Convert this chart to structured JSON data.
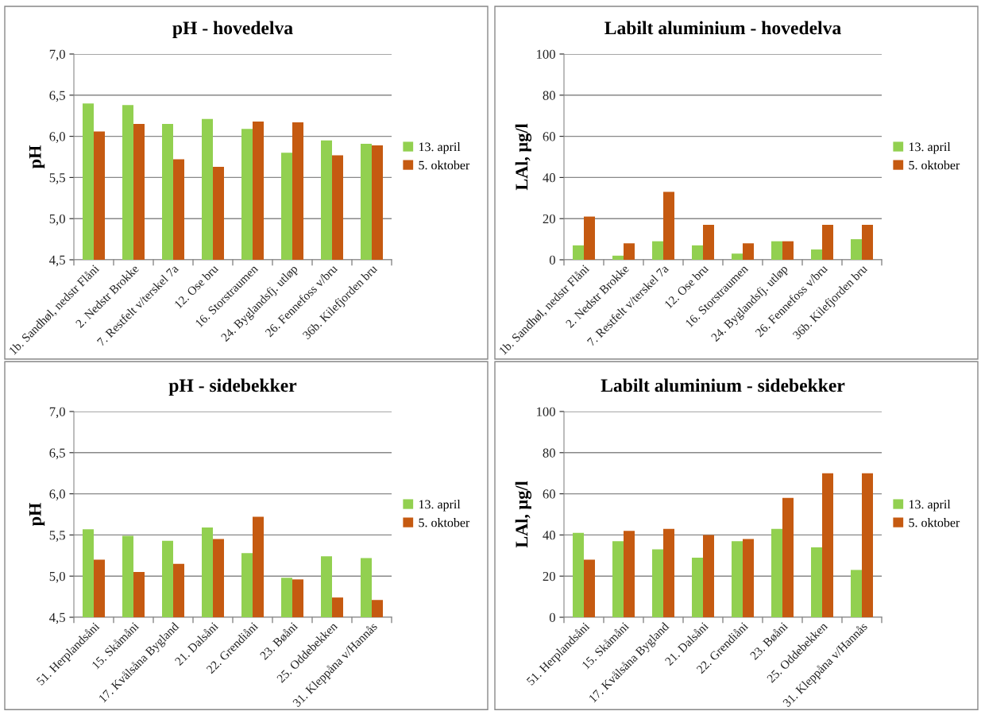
{
  "chart_data": [
    {
      "type": "bar",
      "title": "pH - hovedelva",
      "ylabel": "pH",
      "categories": [
        "1b. Sandhøl, nedstr Flåni",
        "2. Nedstr Brokke",
        "7. Restfelt v/terskel 7a",
        "12. Ose bru",
        "16. Storstraumen",
        "24. Byglandsfj. utløp",
        "26. Fennefoss v/bru",
        "36b. Kilefjorden bru"
      ],
      "series": [
        {
          "name": "13. april",
          "color": "#92d050",
          "values": [
            6.4,
            6.38,
            6.15,
            6.21,
            6.09,
            5.8,
            5.95,
            5.91
          ]
        },
        {
          "name": "5. oktober",
          "color": "#c55a11",
          "values": [
            6.06,
            6.15,
            5.72,
            5.63,
            6.18,
            6.17,
            5.77,
            5.89
          ]
        }
      ],
      "ylim": [
        4.5,
        7.0
      ],
      "yticks": [
        {
          "value": 4.5,
          "label": "4,5"
        },
        {
          "value": 5.0,
          "label": "5,0"
        },
        {
          "value": 5.5,
          "label": "5,5"
        },
        {
          "value": 6.0,
          "label": "6,0"
        },
        {
          "value": 6.5,
          "label": "6,5"
        },
        {
          "value": 7.0,
          "label": "7,0"
        }
      ],
      "grid": "y",
      "legend": "right"
    },
    {
      "type": "bar",
      "title": "Labilt aluminium - hovedelva",
      "ylabel": "LAl, µg/l",
      "categories": [
        "1b. Sandhøl, nedstr Flåni",
        "2. Nedstr Brokke",
        "7. Restfelt v/terskel 7a",
        "12. Ose bru",
        "16. Storstraumen",
        "24. Byglandsfj. utløp",
        "26. Fennefoss v/bru",
        "36b. Kilefjorden bru"
      ],
      "series": [
        {
          "name": "13. april",
          "color": "#92d050",
          "values": [
            7,
            2,
            9,
            7,
            3,
            9,
            5,
            10
          ]
        },
        {
          "name": "5. oktober",
          "color": "#c55a11",
          "values": [
            21,
            8,
            33,
            17,
            8,
            9,
            17,
            17
          ]
        }
      ],
      "ylim": [
        0,
        100
      ],
      "yticks": [
        0,
        20,
        40,
        60,
        80,
        100
      ],
      "grid": "y",
      "legend": "right"
    },
    {
      "type": "bar",
      "title": "pH - sidebekker",
      "ylabel": "pH",
      "categories": [
        "51. Herplandsåni",
        "15. Skåmåni",
        "17. Kvålsåna Bygland",
        "21. Dalsåni",
        "22. Grendiåni",
        "23. Bøåni",
        "25. Oddebekken",
        "31. Kleppåna v/Hannås"
      ],
      "series": [
        {
          "name": "13. april",
          "color": "#92d050",
          "values": [
            5.57,
            5.49,
            5.43,
            5.59,
            5.28,
            4.98,
            5.24,
            5.22
          ]
        },
        {
          "name": "5. oktober",
          "color": "#c55a11",
          "values": [
            5.2,
            5.05,
            5.15,
            5.45,
            5.72,
            4.96,
            4.74,
            4.71
          ]
        }
      ],
      "ylim": [
        4.5,
        7.0
      ],
      "yticks": [
        {
          "value": 4.5,
          "label": "4,5"
        },
        {
          "value": 5.0,
          "label": "5,0"
        },
        {
          "value": 5.5,
          "label": "5,5"
        },
        {
          "value": 6.0,
          "label": "6,0"
        },
        {
          "value": 6.5,
          "label": "6,5"
        },
        {
          "value": 7.0,
          "label": "7,0"
        }
      ],
      "grid": "y",
      "legend": "right"
    },
    {
      "type": "bar",
      "title": "Labilt aluminium - sidebekker",
      "ylabel": "LAl, µg/l",
      "categories": [
        "51. Herplandsåni",
        "15. Skåmåni",
        "17. Kvålsåna Bygland",
        "21. Dalsåni",
        "22. Grendiåni",
        "23. Bøåni",
        "25. Oddebekken",
        "31. Kleppåna v/Hannås"
      ],
      "series": [
        {
          "name": "13. april",
          "color": "#92d050",
          "values": [
            41,
            37,
            33,
            29,
            37,
            43,
            34,
            23
          ]
        },
        {
          "name": "5. oktober",
          "color": "#c55a11",
          "values": [
            28,
            42,
            43,
            40,
            38,
            58,
            70,
            70
          ]
        }
      ],
      "ylim": [
        0,
        100
      ],
      "yticks": [
        0,
        20,
        40,
        60,
        80,
        100
      ],
      "grid": "y",
      "legend": "right"
    }
  ]
}
